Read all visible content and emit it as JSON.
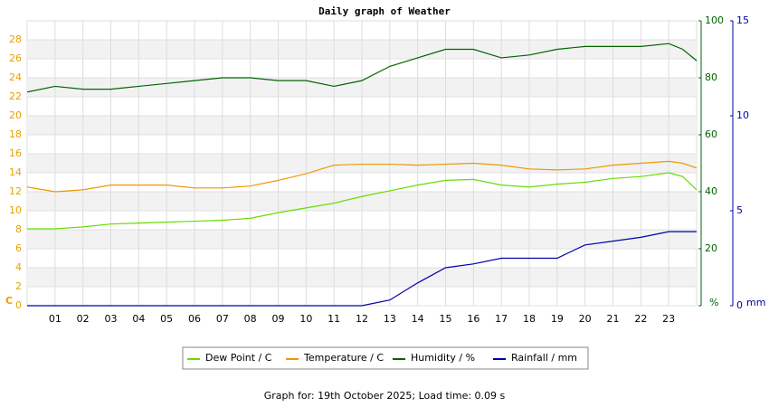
{
  "chart_data": {
    "type": "line",
    "title": "Daily graph of Weather",
    "footer": "Graph for: 19th October 2025; Load time: 0.09 s",
    "ylabel": "C",
    "y2label": "%",
    "y3label": "mm",
    "xlim": [
      0,
      24
    ],
    "xticks": [
      {
        "value": 1,
        "label": "01"
      },
      {
        "value": 2,
        "label": "02"
      },
      {
        "value": 3,
        "label": "03"
      },
      {
        "value": 4,
        "label": "04"
      },
      {
        "value": 5,
        "label": "05"
      },
      {
        "value": 6,
        "label": "06"
      },
      {
        "value": 7,
        "label": "07"
      },
      {
        "value": 8,
        "label": "08"
      },
      {
        "value": 9,
        "label": "09"
      },
      10,
      11,
      12,
      13,
      14,
      15,
      16,
      17,
      18,
      19,
      20,
      21,
      22,
      23
    ],
    "ylim": [
      0,
      30
    ],
    "yticks": [
      0,
      2,
      4,
      6,
      8,
      10,
      12,
      14,
      16,
      18,
      20,
      22,
      24,
      26,
      28
    ],
    "y2lim": [
      0,
      100
    ],
    "y2ticks": [
      0,
      20,
      40,
      60,
      80,
      100
    ],
    "y3lim": [
      0,
      15
    ],
    "y3ticks": [
      0,
      5,
      10,
      15
    ],
    "grid": true,
    "x": [
      0,
      1,
      2,
      3,
      4,
      5,
      6,
      7,
      8,
      9,
      10,
      11,
      12,
      13,
      14,
      15,
      16,
      17,
      18,
      19,
      20,
      21,
      22,
      23,
      23.5,
      24
    ],
    "series": [
      {
        "name": "Dew Point / C",
        "color": "#66dd00",
        "axis": "y",
        "values": [
          8.1,
          8.1,
          8.3,
          8.6,
          8.7,
          8.8,
          8.9,
          9.0,
          9.2,
          9.8,
          10.3,
          10.8,
          11.5,
          12.1,
          12.7,
          13.2,
          13.3,
          12.7,
          12.5,
          12.8,
          13.0,
          13.4,
          13.6,
          14.0,
          13.6,
          12.2
        ]
      },
      {
        "name": "Temperature / C",
        "color": "#ee9900",
        "axis": "y",
        "values": [
          12.5,
          12.0,
          12.2,
          12.7,
          12.7,
          12.7,
          12.4,
          12.4,
          12.6,
          13.2,
          13.9,
          14.8,
          14.9,
          14.9,
          14.8,
          14.9,
          15.0,
          14.8,
          14.4,
          14.3,
          14.4,
          14.8,
          15.0,
          15.2,
          15.0,
          14.5
        ]
      },
      {
        "name": "Humidity / %",
        "color": "#006400",
        "axis": "y2",
        "values": [
          75,
          77,
          76,
          76,
          77,
          78,
          79,
          80,
          80,
          79,
          79,
          77,
          79,
          84,
          87,
          90,
          90,
          87,
          88,
          90,
          91,
          91,
          91,
          92,
          90,
          86
        ]
      },
      {
        "name": "Rainfall / mm",
        "color": "#0000aa",
        "axis": "y3",
        "values": [
          0,
          0,
          0,
          0,
          0,
          0,
          0,
          0,
          0,
          0,
          0,
          0,
          0,
          0.3,
          1.2,
          2.0,
          2.2,
          2.5,
          2.5,
          2.5,
          3.2,
          3.4,
          3.6,
          3.9,
          3.9,
          3.9
        ]
      }
    ]
  }
}
